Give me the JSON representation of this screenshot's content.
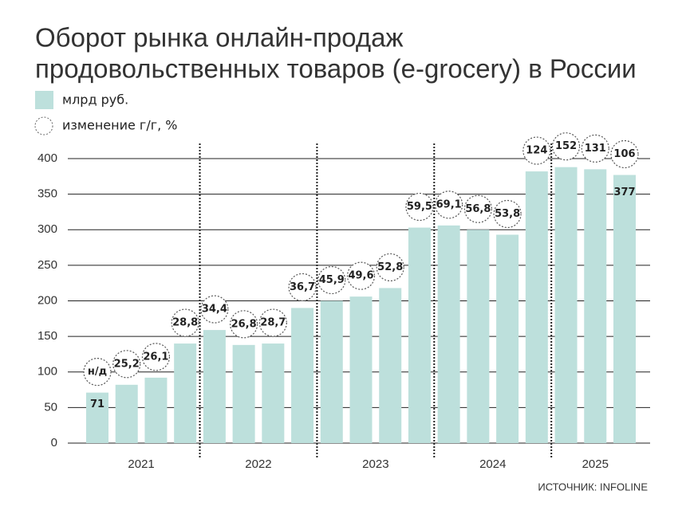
{
  "chart_data": {
    "type": "bar",
    "title": [
      "Оборот рынка онлайн-продаж",
      "продовольственных товаров (e-grocery) в России"
    ],
    "categories": [
      null,
      null,
      null,
      null,
      null,
      null,
      null,
      null,
      null,
      null,
      null,
      null,
      null,
      null,
      null,
      null,
      null,
      null,
      null
    ],
    "year_labels": [
      "2021",
      "2022",
      "2023",
      "2024",
      "2025"
    ],
    "series": [
      {
        "name": "млрд руб.",
        "color": "#bde0dc",
        "values": [
          71,
          82,
          92,
          140,
          159,
          138,
          140,
          190,
          200,
          206,
          218,
          303,
          306,
          300,
          293,
          382,
          388,
          385,
          377
        ]
      },
      {
        "name": "изменение г/г, %",
        "values": [
          null,
          25.2,
          26.1,
          28.8,
          34.4,
          26.8,
          28.7,
          36.7,
          45.9,
          49.6,
          52.8,
          59.5,
          69.1,
          56.8,
          53.8,
          124,
          152,
          131,
          106
        ],
        "value_labels": [
          "н/д",
          "25,2",
          "26,1",
          "28,8",
          "34,4",
          "26,8",
          "28,7",
          "36,7",
          "45,9",
          "49,6",
          "52,8",
          "59,5",
          "69,1",
          "56,8",
          "53,8",
          "124",
          "152",
          "131",
          "106"
        ]
      }
    ],
    "ylim": [
      0,
      400
    ],
    "yticks": [
      0,
      50,
      100,
      150,
      200,
      250,
      300,
      350,
      400
    ],
    "grid": true,
    "source": "ИСТОЧНИК: INFOLINE"
  }
}
